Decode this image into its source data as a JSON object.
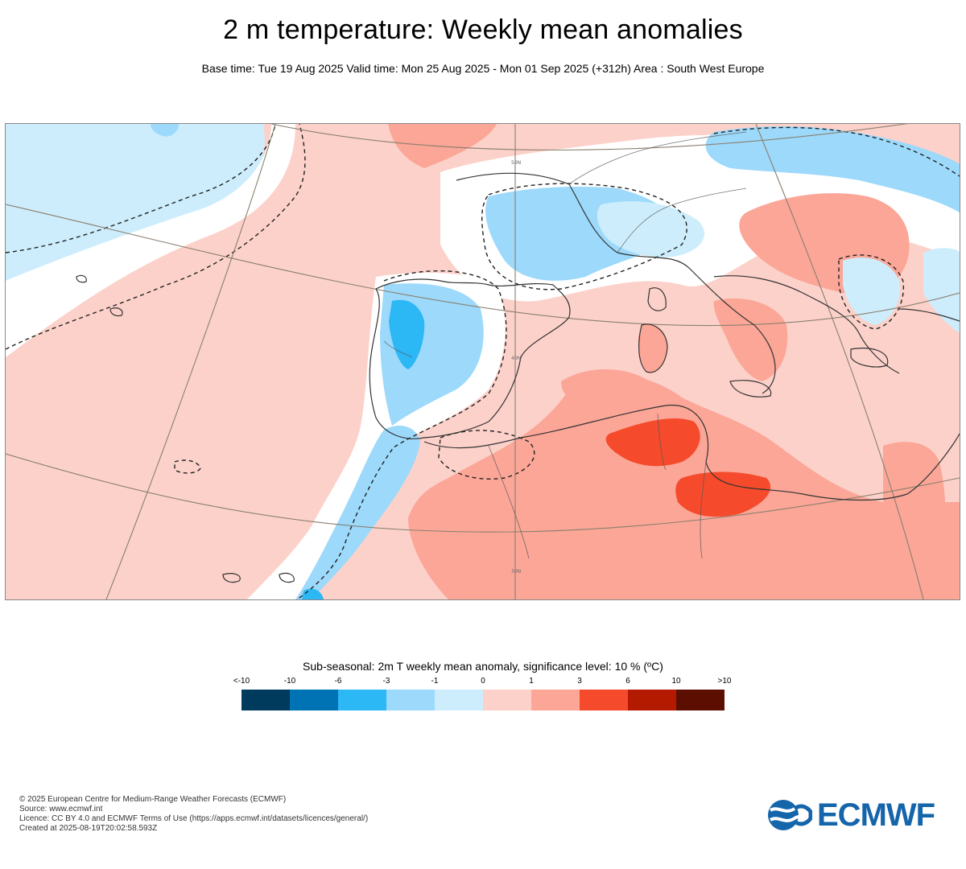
{
  "header": {
    "title": "2 m temperature: Weekly mean anomalies",
    "subtitle": "Base time: Tue 19 Aug 2025 Valid time: Mon 25 Aug 2025 - Mon 01 Sep 2025 (+312h) Area : South West Europe"
  },
  "map": {
    "lat_labels": [
      "50N",
      "40N",
      "30N"
    ],
    "colors": {
      "very_cold": "#003a5c",
      "cold10": "#0073b4",
      "cold6": "#2cb7f5",
      "cold3": "#9cd9fb",
      "cold1": "#cdedfc",
      "neutral": "#ffffff",
      "warm1": "#fcd1ca",
      "warm3": "#fba697",
      "warm6": "#f54b2c",
      "warm10": "#b31a00",
      "very_warm": "#5c0f00",
      "coast": "#333333",
      "graticule": "#8a7f6f"
    }
  },
  "legend": {
    "title": "Sub-seasonal: 2m T weekly mean anomaly, significance level: 10 % (ºC)",
    "ticks": [
      "<-10",
      "-10",
      "-6",
      "-3",
      "-1",
      "0",
      "1",
      "3",
      "6",
      "10",
      ">10"
    ],
    "colors": [
      "#003a5c",
      "#0073b4",
      "#2cb7f5",
      "#9cd9fb",
      "#cdedfc",
      "#fcd1ca",
      "#fba697",
      "#f54b2c",
      "#b31a00",
      "#5c0f00"
    ]
  },
  "footer": {
    "copyright": "© 2025 European Centre for Medium-Range Weather Forecasts (ECMWF)",
    "source": "Source: www.ecmwf.int",
    "licence": "Licence: CC BY 4.0 and ECMWF Terms of Use (https://apps.ecmwf.int/datasets/licences/general/)",
    "created": "Created at 2025-08-19T20:02:58.593Z"
  },
  "logo": {
    "text": "ECMWF",
    "color": "#1565ab"
  }
}
